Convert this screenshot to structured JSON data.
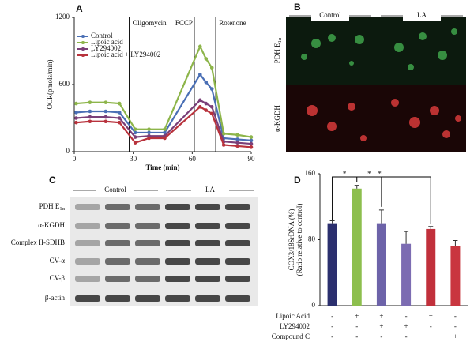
{
  "chart_data": [
    {
      "type": "line",
      "panel": "A",
      "xlabel": "Time (min)",
      "ylabel": "OCR(pmols/min)",
      "x": [
        1,
        8,
        16,
        23,
        31,
        38,
        46,
        64,
        67,
        70,
        76,
        83,
        90
      ],
      "xlim": [
        0,
        90
      ],
      "xticks": [
        0,
        30,
        60,
        90
      ],
      "ylim": [
        0,
        1200
      ],
      "yticks": [
        0,
        600,
        1200
      ],
      "events": [
        {
          "label": "Oligomycin",
          "x": 28
        },
        {
          "label": "FCCP",
          "x": 61
        },
        {
          "label": "Rotenone",
          "x": 72
        }
      ],
      "legend": "upper left",
      "series": [
        {
          "name": "Control",
          "color": "#4a6fb5",
          "values": [
            350,
            360,
            360,
            350,
            170,
            170,
            170,
            690,
            620,
            560,
            120,
            110,
            100
          ]
        },
        {
          "name": "Lipoic acid",
          "color": "#8db54a",
          "values": [
            430,
            440,
            440,
            430,
            200,
            200,
            200,
            940,
            830,
            750,
            160,
            150,
            130
          ]
        },
        {
          "name": "LY294002",
          "color": "#7a3f78",
          "values": [
            300,
            310,
            310,
            300,
            130,
            140,
            140,
            460,
            430,
            400,
            90,
            80,
            70
          ]
        },
        {
          "name": "Lipoic acid + LY294002",
          "color": "#b8323c",
          "values": [
            260,
            270,
            270,
            260,
            80,
            120,
            120,
            400,
            370,
            340,
            60,
            50,
            40
          ]
        }
      ]
    },
    {
      "type": "bar",
      "panel": "D",
      "ylabel": "COX3/18SrDNA (%)",
      "ylabel2": "(Ratio relative to control)",
      "ylim": [
        0,
        160
      ],
      "yticks": [
        0,
        80,
        160
      ],
      "values": [
        100,
        142,
        100,
        75,
        93,
        72
      ],
      "errors": [
        3,
        4,
        16,
        15,
        3,
        7
      ],
      "colors": [
        "#2b2f6e",
        "#8dbf4e",
        "#6d63a9",
        "#7c6cb2",
        "#c1303b",
        "#c9363f"
      ],
      "annotations": [
        "*",
        "*",
        "*"
      ],
      "conditions": [
        {
          "label": "Lipoic Acid",
          "signs": [
            "-",
            "+",
            "+",
            "-",
            "+",
            "-"
          ]
        },
        {
          "label": "LY294002",
          "signs": [
            "-",
            "-",
            "+",
            "+",
            "-",
            "-"
          ]
        },
        {
          "label": "Compound C",
          "signs": [
            "-",
            "-",
            "-",
            "-",
            "+",
            "+"
          ]
        }
      ]
    }
  ],
  "panel_b": {
    "panel": "B",
    "columns": [
      "Control",
      "LA"
    ],
    "rows": [
      {
        "main": "PDH E",
        "sub": "1α"
      },
      {
        "main": "α-KGDH",
        "sub": ""
      }
    ]
  },
  "panel_c": {
    "panel": "C",
    "columns": [
      "Control",
      "LA"
    ],
    "rows": [
      {
        "main": "PDH E",
        "sub": "1α"
      },
      {
        "main": "α-KGDH",
        "sub": ""
      },
      {
        "main": "Complex II-SDHB",
        "sub": ""
      },
      {
        "main": "CV-α",
        "sub": ""
      },
      {
        "main": "CV-β",
        "sub": ""
      },
      {
        "main": "β-actin",
        "sub": ""
      }
    ]
  }
}
